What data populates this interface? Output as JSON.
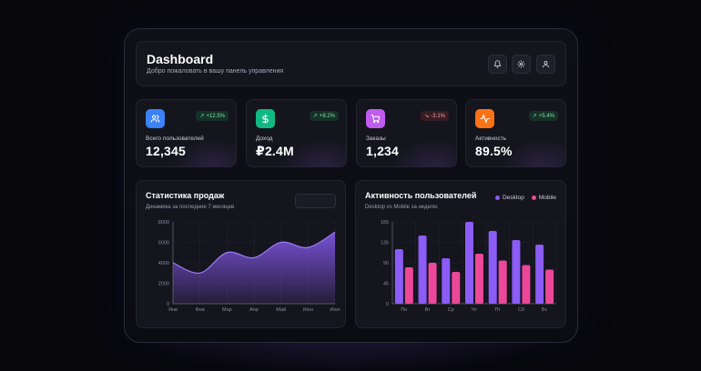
{
  "header": {
    "title": "Dashboard",
    "subtitle": "Добро пожаловать в вашу панель управления",
    "buttons": [
      "bell-icon",
      "gear-icon",
      "user-icon"
    ]
  },
  "stats": [
    {
      "label": "Всего пользователей",
      "value": "12,345",
      "change": "+12.5%",
      "trend": "up",
      "icon": "users-icon",
      "color": "#3b82f6"
    },
    {
      "label": "Доход",
      "value": "₽2.4M",
      "change": "+8.2%",
      "trend": "up",
      "icon": "dollar-icon",
      "color": "#10b981"
    },
    {
      "label": "Заказы",
      "value": "1,234",
      "change": "-3.1%",
      "trend": "down",
      "icon": "cart-icon",
      "color": "#a855f7"
    },
    {
      "label": "Активность",
      "value": "89.5%",
      "change": "+5.4%",
      "trend": "up",
      "icon": "activity-icon",
      "color": "#f97316"
    }
  ],
  "sales": {
    "title": "Статистика продаж",
    "subtitle": "Динамика за последние 7 месяцев"
  },
  "activity": {
    "title": "Активность пользователей",
    "subtitle": "Desktop vs Mobile за неделю",
    "legend": [
      "Desktop",
      "Mobile"
    ]
  },
  "chart_data": [
    {
      "type": "area",
      "categories": [
        "Янв",
        "Фев",
        "Мар",
        "Апр",
        "Май",
        "Июн",
        "Июл"
      ],
      "values": [
        4000,
        3000,
        5000,
        4500,
        6000,
        5500,
        7000
      ],
      "yticks": [
        0,
        2000,
        4000,
        6000,
        8000
      ],
      "ylim": [
        0,
        8000
      ],
      "grid": true,
      "color": "#8b5cf6"
    },
    {
      "type": "bar",
      "categories": [
        "Пн",
        "Вт",
        "Ср",
        "Чт",
        "Пт",
        "Сб",
        "Вс"
      ],
      "series": [
        {
          "name": "Desktop",
          "values": [
            120,
            150,
            100,
            180,
            160,
            140,
            130
          ],
          "color": "#8b5cf6"
        },
        {
          "name": "Mobile",
          "values": [
            80,
            90,
            70,
            110,
            95,
            85,
            75
          ],
          "color": "#ec4899"
        }
      ],
      "yticks": [
        0,
        45,
        90,
        135,
        180
      ],
      "ylim": [
        0,
        180
      ],
      "grid": true
    }
  ]
}
